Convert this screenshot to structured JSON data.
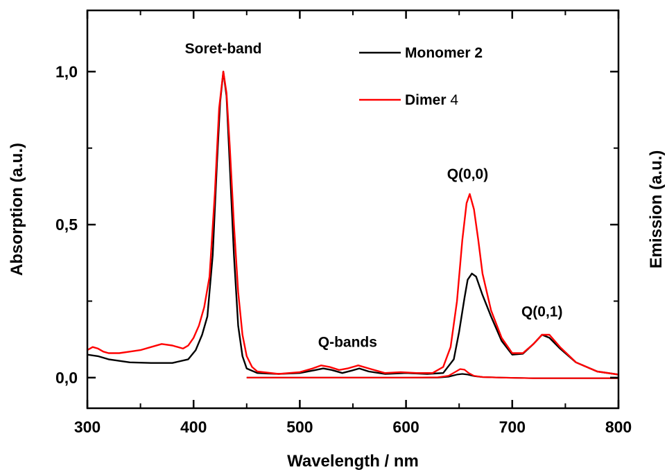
{
  "chart_data": {
    "type": "line",
    "xlabel": "Wavelength / nm",
    "ylabel": "Absorption (a.u.)",
    "ylabel_right": "Emission (a.u.)",
    "xlim": [
      300,
      800
    ],
    "ylim": [
      -0.1,
      1.2
    ],
    "xticks": [
      300,
      400,
      500,
      600,
      700,
      800
    ],
    "xtick_labels": [
      "300",
      "400",
      "500",
      "600",
      "700",
      "800"
    ],
    "yticks": [
      0.0,
      0.5,
      1.0
    ],
    "ytick_labels": [
      "0,0",
      "0,5",
      "1,0"
    ],
    "grid": false,
    "legend_position": "top-center",
    "annotations": [
      {
        "text": "Soret-band",
        "x": 428,
        "y": 1.06
      },
      {
        "text": "Q-bands",
        "x": 545,
        "y": 0.1
      },
      {
        "text": "Q(0,0)",
        "x": 658,
        "y": 0.65
      },
      {
        "text": "Q(0,1)",
        "x": 728,
        "y": 0.2
      }
    ],
    "series": [
      {
        "name": "Monomer 2",
        "name_parts": [
          "Monomer 2",
          ""
        ],
        "color": "#000000",
        "kind": "absorption",
        "x": [
          300,
          310,
          320,
          340,
          360,
          380,
          395,
          402,
          408,
          413,
          418,
          422,
          425,
          428,
          431,
          434,
          438,
          442,
          446,
          450,
          460,
          480,
          500,
          515,
          522,
          530,
          540,
          548,
          556,
          565,
          580,
          600,
          620,
          635,
          645,
          650,
          655,
          658,
          662,
          666,
          672,
          680,
          690,
          700,
          710,
          720,
          728,
          735,
          745,
          760,
          780,
          800
        ],
        "y": [
          0.075,
          0.07,
          0.06,
          0.05,
          0.048,
          0.048,
          0.06,
          0.09,
          0.14,
          0.2,
          0.4,
          0.7,
          0.9,
          1.0,
          0.92,
          0.7,
          0.4,
          0.17,
          0.07,
          0.03,
          0.015,
          0.012,
          0.015,
          0.025,
          0.03,
          0.025,
          0.015,
          0.022,
          0.03,
          0.02,
          0.012,
          0.015,
          0.012,
          0.015,
          0.06,
          0.15,
          0.26,
          0.32,
          0.34,
          0.33,
          0.27,
          0.2,
          0.12,
          0.075,
          0.078,
          0.11,
          0.14,
          0.13,
          0.095,
          0.05,
          0.02,
          0.01
        ]
      },
      {
        "name": "Dimer 4",
        "name_parts": [
          "Dimer",
          " 4"
        ],
        "color": "#ff0000",
        "kind": "absorption",
        "x": [
          300,
          305,
          310,
          315,
          320,
          330,
          340,
          350,
          360,
          370,
          380,
          390,
          395,
          400,
          405,
          410,
          415,
          420,
          424,
          428,
          431,
          434,
          438,
          442,
          446,
          450,
          455,
          460,
          480,
          500,
          512,
          520,
          528,
          537,
          545,
          555,
          565,
          580,
          595,
          610,
          625,
          635,
          642,
          648,
          653,
          657,
          660,
          664,
          668,
          672,
          680,
          690,
          700,
          710,
          720,
          728,
          735,
          745,
          760,
          780,
          800
        ],
        "y": [
          0.09,
          0.1,
          0.095,
          0.085,
          0.08,
          0.08,
          0.085,
          0.09,
          0.1,
          0.11,
          0.105,
          0.095,
          0.105,
          0.13,
          0.17,
          0.23,
          0.33,
          0.6,
          0.88,
          1.0,
          0.93,
          0.76,
          0.5,
          0.28,
          0.14,
          0.07,
          0.035,
          0.02,
          0.012,
          0.018,
          0.03,
          0.04,
          0.035,
          0.025,
          0.03,
          0.04,
          0.03,
          0.015,
          0.018,
          0.015,
          0.015,
          0.035,
          0.1,
          0.25,
          0.45,
          0.57,
          0.6,
          0.55,
          0.45,
          0.34,
          0.22,
          0.13,
          0.08,
          0.08,
          0.11,
          0.14,
          0.14,
          0.1,
          0.05,
          0.02,
          0.01
        ]
      },
      {
        "name": "Monomer 2 emission",
        "color": "#000000",
        "kind": "emission",
        "x": [
          450,
          500,
          550,
          600,
          630,
          640,
          648,
          653,
          658,
          664,
          672,
          690,
          720,
          760,
          800
        ],
        "y": [
          0.0,
          0.0,
          0.0,
          0.0,
          0.0,
          0.003,
          0.01,
          0.012,
          0.01,
          0.005,
          0.002,
          0.0,
          -0.002,
          -0.002,
          -0.002
        ]
      },
      {
        "name": "Dimer 4 emission",
        "color": "#ff0000",
        "kind": "emission",
        "x": [
          450,
          500,
          550,
          600,
          630,
          640,
          646,
          651,
          655,
          659,
          664,
          672,
          690,
          720,
          760,
          800
        ],
        "y": [
          0.0,
          0.0,
          0.0,
          0.0,
          0.001,
          0.006,
          0.018,
          0.028,
          0.026,
          0.015,
          0.006,
          0.002,
          0.0,
          -0.002,
          -0.002,
          -0.002
        ]
      }
    ]
  }
}
